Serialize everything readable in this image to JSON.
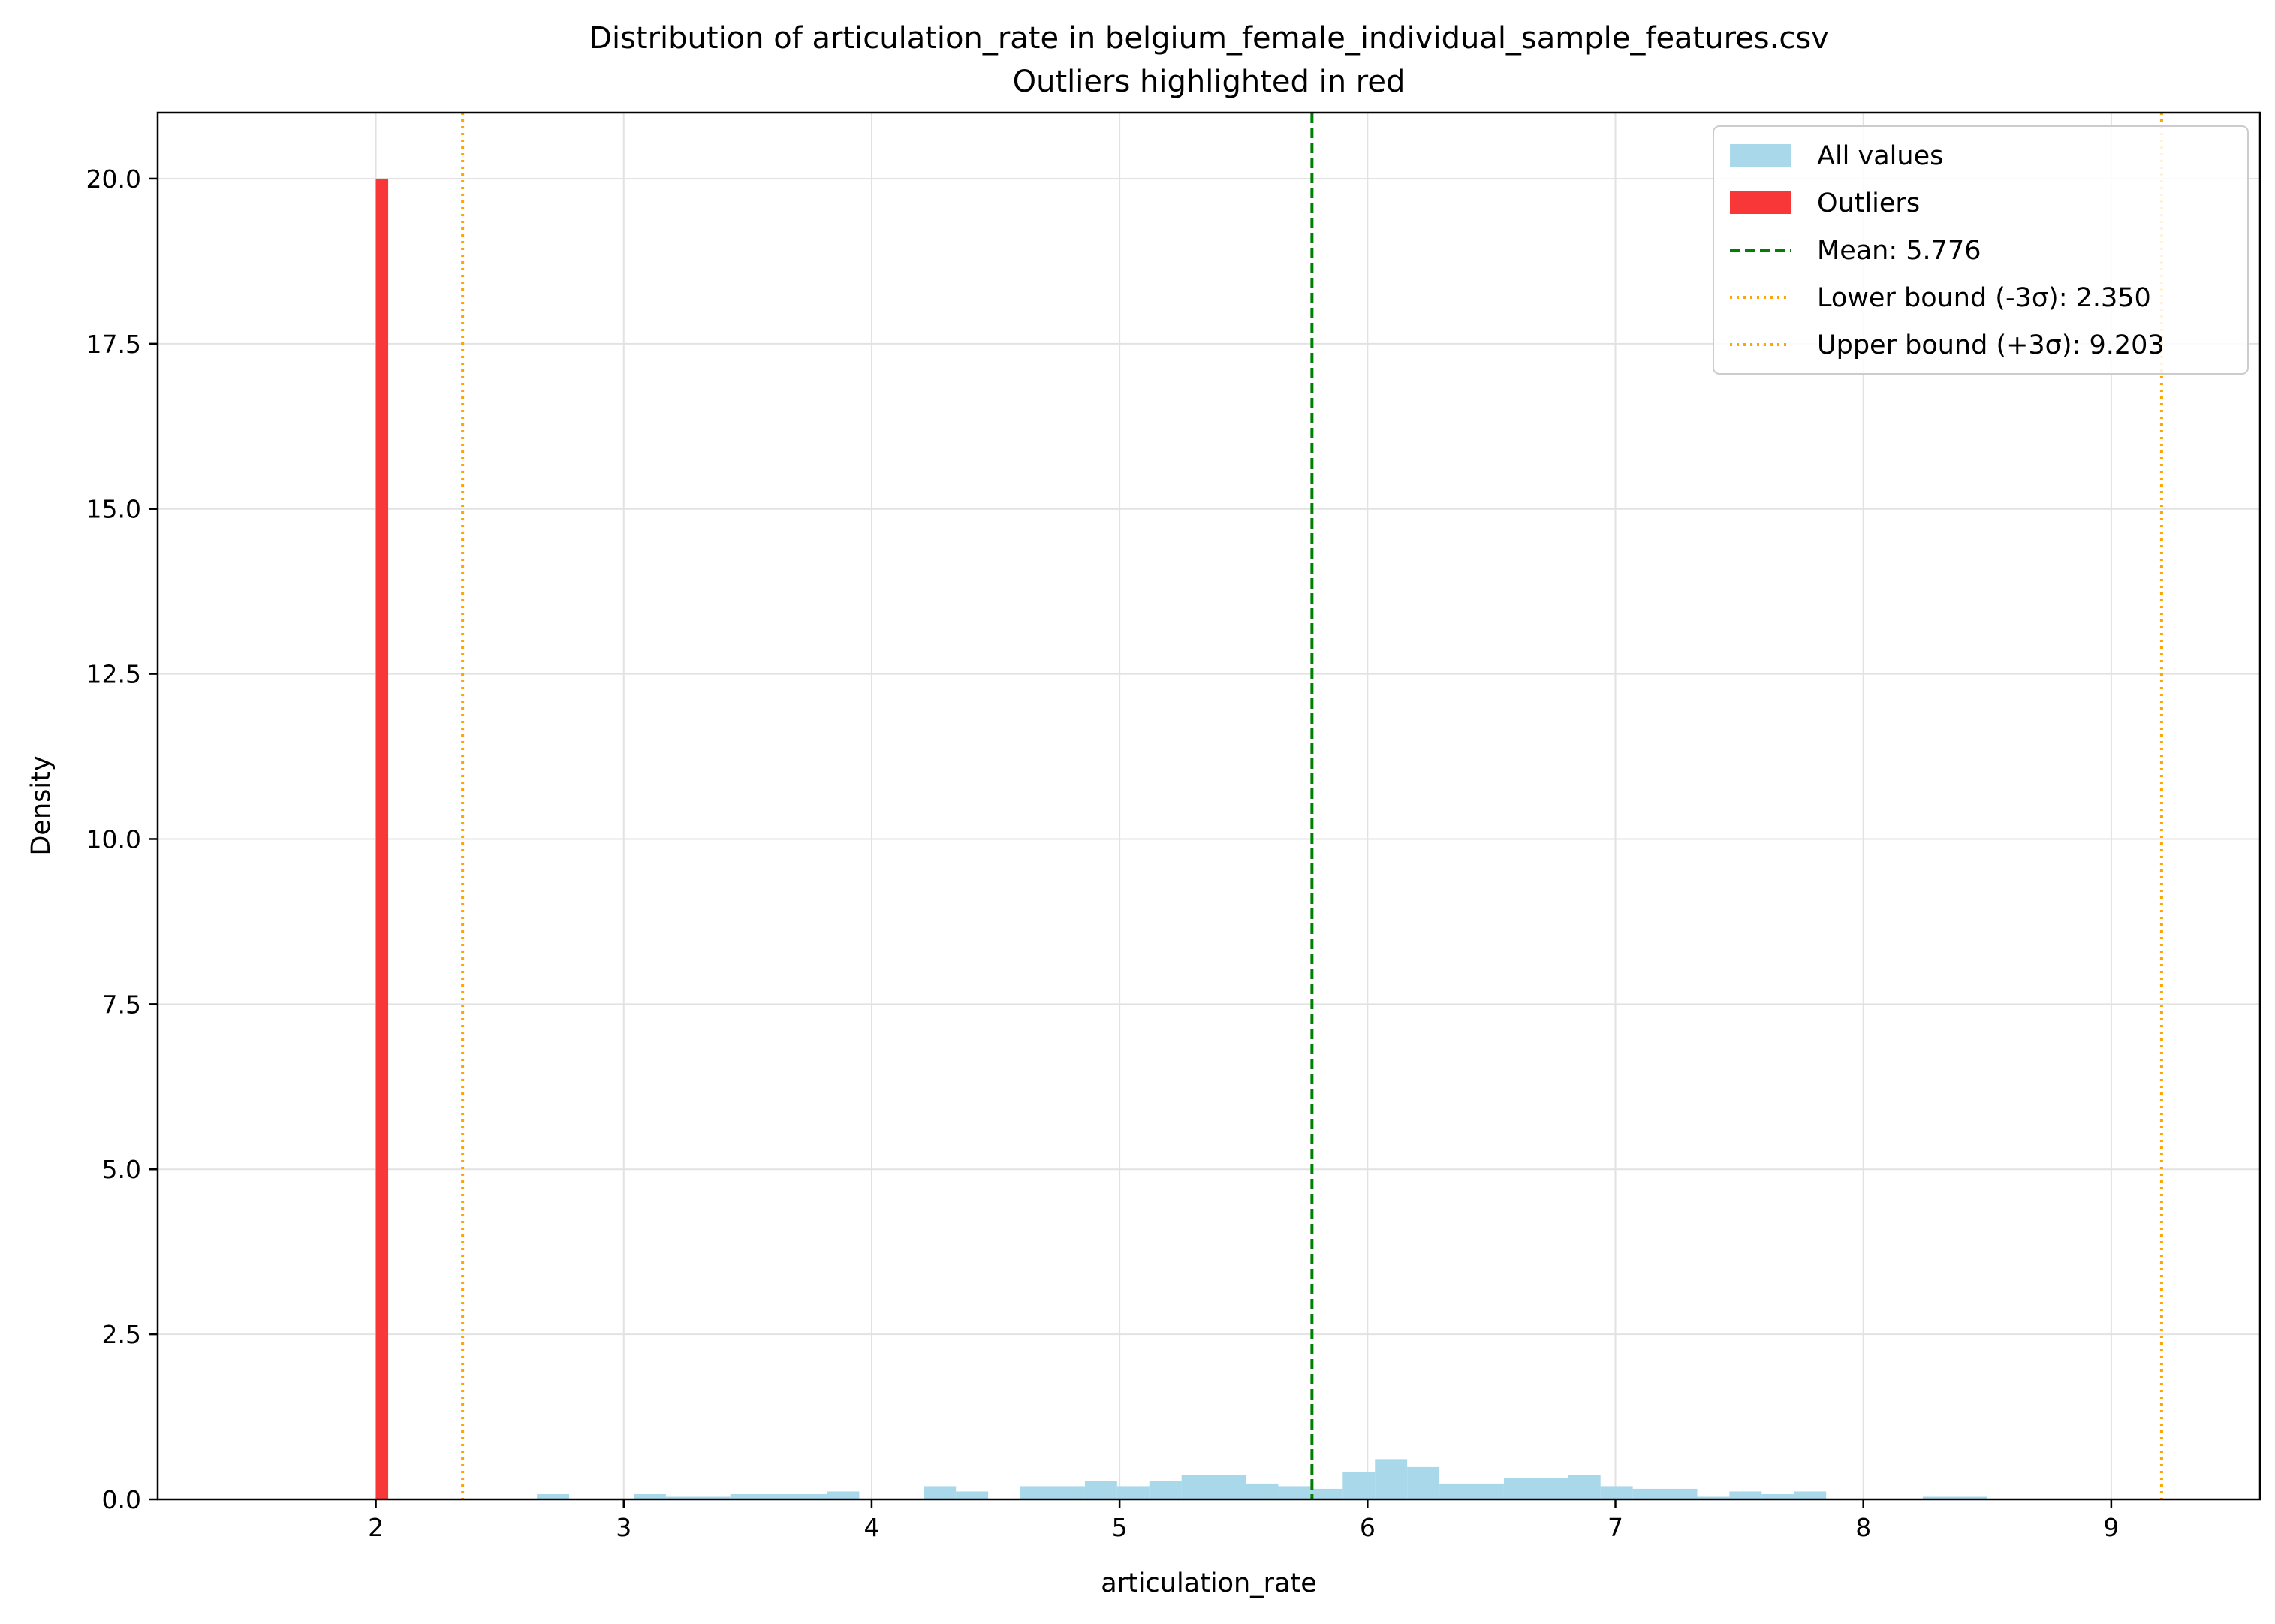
{
  "chart_data": {
    "type": "bar",
    "title": "Distribution of articulation_rate in belgium_female_individual_sample_features.csv",
    "subtitle": "Outliers highlighted in red",
    "xlabel": "articulation_rate",
    "ylabel": "Density",
    "xlim": [
      1.12,
      9.6
    ],
    "ylim": [
      0,
      21
    ],
    "x_ticks": [
      2,
      3,
      4,
      5,
      6,
      7,
      8,
      9
    ],
    "x_tick_labels": [
      "2",
      "3",
      "4",
      "5",
      "6",
      "7",
      "8",
      "9"
    ],
    "y_ticks": [
      0,
      2.5,
      5,
      7.5,
      10,
      12.5,
      15,
      17.5,
      20
    ],
    "y_tick_labels": [
      "0.0",
      "2.5",
      "5.0",
      "7.5",
      "10.0",
      "12.5",
      "15.0",
      "17.5",
      "20.0"
    ],
    "grid": true,
    "legend_position": "top-right",
    "series": [
      {
        "name": "All values",
        "color": "#a8d8ea",
        "bins": [
          {
            "x0": 2.65,
            "x1": 2.78,
            "value": 0.08
          },
          {
            "x0": 3.04,
            "x1": 3.17,
            "value": 0.08
          },
          {
            "x0": 3.17,
            "x1": 3.43,
            "value": 0.04
          },
          {
            "x0": 3.43,
            "x1": 3.82,
            "value": 0.08
          },
          {
            "x0": 3.82,
            "x1": 3.95,
            "value": 0.12
          },
          {
            "x0": 4.21,
            "x1": 4.34,
            "value": 0.2
          },
          {
            "x0": 4.34,
            "x1": 4.47,
            "value": 0.12
          },
          {
            "x0": 4.6,
            "x1": 4.86,
            "value": 0.2
          },
          {
            "x0": 4.86,
            "x1": 4.99,
            "value": 0.28
          },
          {
            "x0": 4.99,
            "x1": 5.12,
            "value": 0.2
          },
          {
            "x0": 5.12,
            "x1": 5.25,
            "value": 0.28
          },
          {
            "x0": 5.25,
            "x1": 5.51,
            "value": 0.37
          },
          {
            "x0": 5.51,
            "x1": 5.64,
            "value": 0.24
          },
          {
            "x0": 5.64,
            "x1": 5.77,
            "value": 0.2
          },
          {
            "x0": 5.77,
            "x1": 5.9,
            "value": 0.16
          },
          {
            "x0": 5.9,
            "x1": 6.03,
            "value": 0.41
          },
          {
            "x0": 6.03,
            "x1": 6.16,
            "value": 0.61
          },
          {
            "x0": 6.16,
            "x1": 6.29,
            "value": 0.49
          },
          {
            "x0": 6.29,
            "x1": 6.55,
            "value": 0.24
          },
          {
            "x0": 6.55,
            "x1": 6.81,
            "value": 0.33
          },
          {
            "x0": 6.81,
            "x1": 6.94,
            "value": 0.37
          },
          {
            "x0": 6.94,
            "x1": 7.07,
            "value": 0.2
          },
          {
            "x0": 7.07,
            "x1": 7.33,
            "value": 0.16
          },
          {
            "x0": 7.33,
            "x1": 7.46,
            "value": 0.04
          },
          {
            "x0": 7.46,
            "x1": 7.59,
            "value": 0.12
          },
          {
            "x0": 7.59,
            "x1": 7.72,
            "value": 0.08
          },
          {
            "x0": 7.72,
            "x1": 7.85,
            "value": 0.12
          },
          {
            "x0": 8.24,
            "x1": 8.5,
            "value": 0.04
          }
        ]
      },
      {
        "name": "Outliers",
        "color": "#f83838",
        "bins": [
          {
            "x0": 2.0,
            "x1": 2.05,
            "value": 20.0
          }
        ]
      }
    ],
    "reference_lines": [
      {
        "name": "Mean: 5.776",
        "x": 5.776,
        "color": "#008000",
        "style": "dashed"
      },
      {
        "name": "Lower bound (-3σ): 2.350",
        "x": 2.35,
        "color": "#ffa500",
        "style": "dotted"
      },
      {
        "name": "Upper bound (+3σ): 9.203",
        "x": 9.203,
        "color": "#ffa500",
        "style": "dotted"
      }
    ]
  }
}
